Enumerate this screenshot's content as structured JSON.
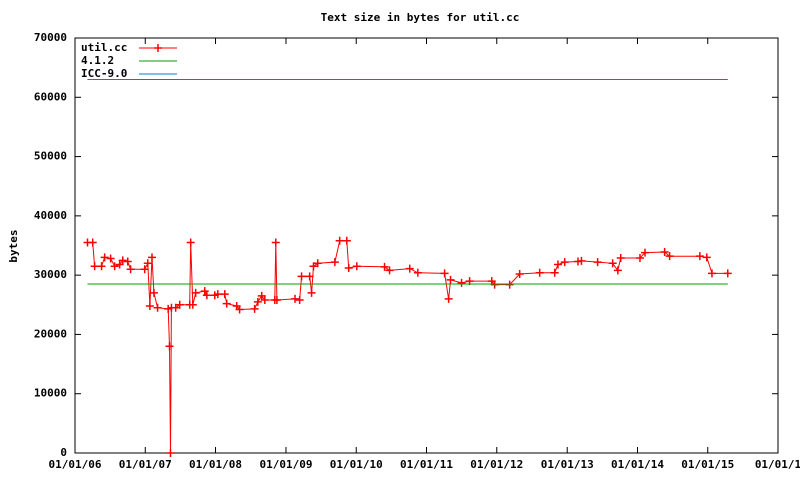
{
  "chart_data": {
    "type": "line",
    "title": "Text size in bytes for util.cc",
    "ylabel": "bytes",
    "legend": "top-left",
    "grid": false,
    "xlim": [
      "2006-01-01",
      "2016-01-01"
    ],
    "xticks": [
      {
        "value": "2006-01-01",
        "label": "01/01/06"
      },
      {
        "value": "2007-01-01",
        "label": "01/01/07"
      },
      {
        "value": "2008-01-01",
        "label": "01/01/08"
      },
      {
        "value": "2009-01-01",
        "label": "01/01/09"
      },
      {
        "value": "2010-01-01",
        "label": "01/01/10"
      },
      {
        "value": "2011-01-01",
        "label": "01/01/11"
      },
      {
        "value": "2012-01-01",
        "label": "01/01/12"
      },
      {
        "value": "2013-01-01",
        "label": "01/01/13"
      },
      {
        "value": "2014-01-01",
        "label": "01/01/14"
      },
      {
        "value": "2015-01-01",
        "label": "01/01/15"
      },
      {
        "value": "2016-01-01",
        "label": "01/01/1"
      }
    ],
    "ylim": [
      0,
      70000
    ],
    "yticks": [
      0,
      10000,
      20000,
      30000,
      40000,
      50000,
      60000,
      70000
    ],
    "series": [
      {
        "name": "util.cc",
        "color": "#ff0000",
        "points": true,
        "x": [
          "2006-03-07",
          "2006-04-03",
          "2006-04-13",
          "2006-05-19",
          "2006-06-04",
          "2006-07-05",
          "2006-07-26",
          "2006-08-21",
          "2006-09-06",
          "2006-10-02",
          "2006-10-17",
          "2006-12-29",
          "2007-01-14",
          "2007-01-25",
          "2007-02-05",
          "2007-02-15",
          "2007-03-06",
          "2007-04-30",
          "2007-05-07",
          "2007-05-12",
          "2007-05-17",
          "2007-06-08",
          "2007-06-29",
          "2007-08-20",
          "2007-08-25",
          "2007-09-05",
          "2007-09-20",
          "2007-11-06",
          "2007-11-17",
          "2007-12-28",
          "2008-01-13",
          "2008-02-18",
          "2008-02-28",
          "2008-04-20",
          "2008-05-05",
          "2008-07-22",
          "2008-08-08",
          "2008-08-28",
          "2008-09-13",
          "2008-11-04",
          "2008-11-09",
          "2008-11-15",
          "2009-02-17",
          "2009-03-13",
          "2009-03-23",
          "2009-05-04",
          "2009-05-14",
          "2009-05-24",
          "2009-06-15",
          "2009-09-12",
          "2009-10-07",
          "2009-11-13",
          "2009-11-23",
          "2010-01-04",
          "2010-05-28",
          "2010-06-23",
          "2010-10-06",
          "2010-11-17",
          "2011-04-05",
          "2011-04-26",
          "2011-05-06",
          "2011-07-02",
          "2011-08-13",
          "2011-12-06",
          "2011-12-21",
          "2012-03-08",
          "2012-04-29",
          "2012-08-11",
          "2012-10-28",
          "2012-11-14",
          "2012-12-19",
          "2013-02-26",
          "2013-03-16",
          "2013-06-08",
          "2013-08-25",
          "2013-09-21",
          "2013-10-06",
          "2014-01-14",
          "2014-02-09",
          "2014-05-22",
          "2014-06-17",
          "2014-11-21",
          "2014-12-27",
          "2015-01-23",
          "2015-04-15"
        ],
        "values": [
          35500,
          35500,
          31500,
          31500,
          33000,
          32800,
          31500,
          31800,
          32500,
          32300,
          31000,
          31000,
          32000,
          24800,
          33000,
          27000,
          24500,
          24300,
          18000,
          0,
          24500,
          24500,
          25000,
          25000,
          35500,
          25000,
          27000,
          27300,
          26600,
          26600,
          26800,
          26800,
          25200,
          24800,
          24200,
          24300,
          25500,
          26500,
          25800,
          25800,
          35500,
          25800,
          26000,
          25800,
          29800,
          29800,
          27000,
          31500,
          32000,
          32200,
          35800,
          35800,
          31200,
          31500,
          31400,
          30800,
          31100,
          30400,
          30300,
          26000,
          29200,
          28700,
          29000,
          29000,
          28400,
          28400,
          30200,
          30400,
          30400,
          31800,
          32200,
          32300,
          32400,
          32200,
          32000,
          30800,
          32900,
          32900,
          33800,
          33900,
          33200,
          33200,
          33000,
          30300,
          30300
        ]
      },
      {
        "name": "4.1.2",
        "color": "#00a000",
        "points": false,
        "x": [
          "2006-03-07",
          "2015-04-15"
        ],
        "values": [
          28500,
          28500
        ]
      },
      {
        "name": "ICC-9.0",
        "color": "#0080c0",
        "points": false,
        "x": [
          "2006-03-07",
          "2015-04-15"
        ],
        "values": [
          63000,
          63000
        ]
      }
    ]
  }
}
